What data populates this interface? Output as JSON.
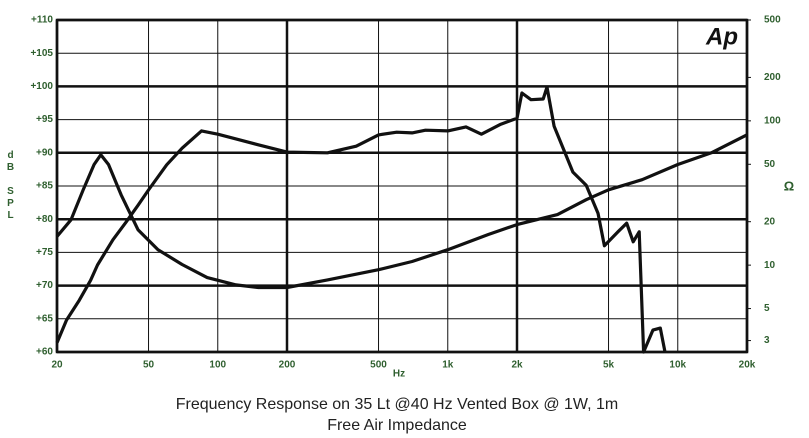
{
  "chart_data": {
    "type": "line",
    "caption": "Frequency Response on 35 Lt @40 Hz Vented Box @ 1W, 1m",
    "caption2": "Free Air Impedance",
    "logo": "Ap",
    "x_label": "Hz",
    "y_label": "dB SPL",
    "y2_label": "Ω",
    "xlog": true,
    "y2log": true,
    "grid": true,
    "xlim": [
      20,
      20000
    ],
    "xticks": [
      20,
      50,
      100,
      200,
      500,
      {
        "value": 1000,
        "label": "1k"
      },
      {
        "value": 2000,
        "label": "2k"
      },
      {
        "value": 5000,
        "label": "5k"
      },
      {
        "value": 10000,
        "label": "10k"
      },
      {
        "value": 20000,
        "label": "20k"
      }
    ],
    "ylim": [
      60,
      110
    ],
    "yticks": [
      {
        "value": 60,
        "label": "+60"
      },
      {
        "value": 65,
        "label": "+65"
      },
      {
        "value": 70,
        "label": "+70"
      },
      {
        "value": 75,
        "label": "+75"
      },
      {
        "value": 80,
        "label": "+80"
      },
      {
        "value": 85,
        "label": "+85"
      },
      {
        "value": 90,
        "label": "+90"
      },
      {
        "value": 95,
        "label": "+95"
      },
      {
        "value": 100,
        "label": "+100"
      },
      {
        "value": 105,
        "label": "+105"
      },
      {
        "value": 110,
        "label": "+110"
      }
    ],
    "y2lim": [
      2.5,
      500
    ],
    "y2ticks": [
      3,
      5,
      10,
      20,
      50,
      100,
      200,
      500
    ],
    "series": [
      {
        "color": "#111111",
        "x": [
          20,
          22,
          25,
          28,
          30,
          35,
          40,
          45,
          50,
          60,
          70,
          85,
          100,
          120,
          150,
          200,
          300,
          400,
          500,
          600,
          700,
          800,
          1000,
          1200,
          1400,
          1700,
          2000,
          2100,
          2300,
          2600,
          2700,
          2900,
          3200,
          3500,
          4000,
          4500,
          4800,
          5500,
          6000,
          6400,
          6800,
          7100,
          7800,
          8400,
          8800
        ],
        "values": [
          61.4,
          64.8,
          67.8,
          70.8,
          73.1,
          76.9,
          79.6,
          82.1,
          84.4,
          88.2,
          90.7,
          93.3,
          92.8,
          92.1,
          91.2,
          90.1,
          90,
          91,
          92.7,
          93.1,
          93,
          93.4,
          93.3,
          93.9,
          92.8,
          94.3,
          95.2,
          99,
          98,
          98.1,
          99.9,
          94,
          90.4,
          87.1,
          85.1,
          80.9,
          76,
          78.1,
          79.4,
          76.6,
          78.1,
          60,
          63.3,
          63.6,
          60
        ]
      },
      {
        "color": "#111111",
        "axis": "y2",
        "x": [
          20,
          23,
          26,
          29,
          31,
          33.5,
          38,
          45,
          55,
          70,
          90,
          120,
          150,
          200,
          300,
          500,
          700,
          1000,
          1500,
          2000,
          3000,
          4000,
          5000,
          7000,
          10000,
          14000,
          20000
        ],
        "values": [
          15.8,
          20.6,
          33.3,
          49.8,
          58.2,
          49.8,
          30.7,
          17.6,
          12.8,
          10.1,
          8.2,
          7.3,
          7,
          7,
          7.9,
          9.3,
          10.6,
          12.8,
          16.3,
          19.1,
          22.4,
          28.4,
          33.3,
          39.1,
          49.8,
          60.1,
          80
        ]
      }
    ]
  }
}
